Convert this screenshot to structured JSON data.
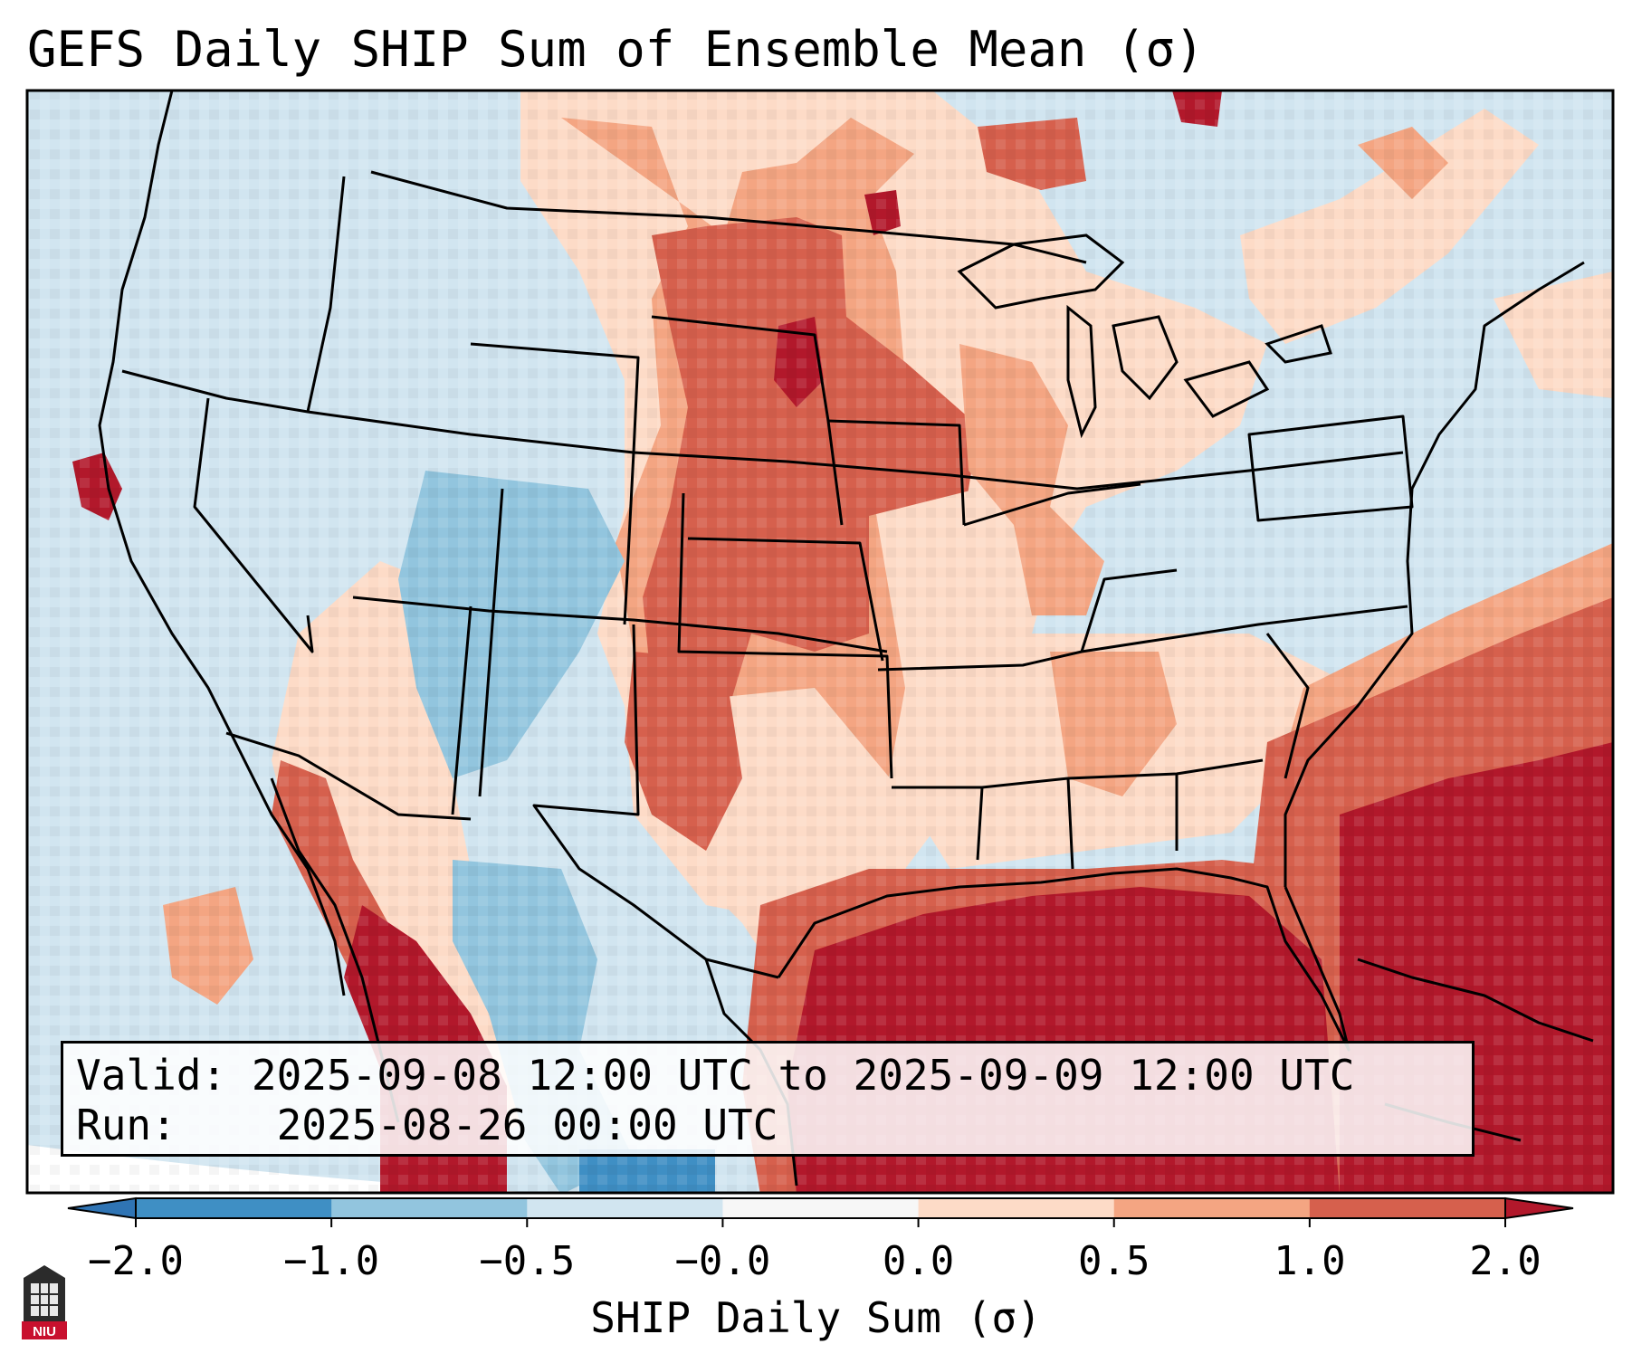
{
  "title": "GEFS Daily SHIP Sum of Ensemble Mean (σ)",
  "info": {
    "valid_label": "Valid:",
    "valid_value": "2025-09-08 12:00 UTC to 2025-09-09 12:00 UTC",
    "run_label": "Run:",
    "run_value": "2025-08-26 00:00 UTC"
  },
  "colorbar": {
    "label": "SHIP Daily Sum (σ)",
    "ticks": [
      "−2.0",
      "−1.0",
      "−0.5",
      "−0.0",
      "0.0",
      "0.5",
      "1.0",
      "2.0"
    ],
    "bins": [
      {
        "range": "< -2.0",
        "color": "#2f74b4"
      },
      {
        "range": "-2.0 to -1.0",
        "color": "#3f8fc4"
      },
      {
        "range": "-1.0 to -0.5",
        "color": "#92c5de"
      },
      {
        "range": "-0.5 to -0.0",
        "color": "#d1e5f0"
      },
      {
        "range": "-0.0 to 0.0",
        "color": "#f7f7f7"
      },
      {
        "range": "0.0 to 0.5",
        "color": "#fddbc7"
      },
      {
        "range": "0.5 to 1.0",
        "color": "#f4a582"
      },
      {
        "range": "1.0 to 2.0",
        "color": "#d6604d"
      },
      {
        "range": "> 2.0",
        "color": "#b2182b"
      }
    ]
  },
  "logo": {
    "name": "NIU",
    "text": "NIU",
    "color": "#c8102e"
  },
  "map_regions": [
    {
      "region": "Pacific Northwest / Great Basin / Rockies",
      "category": "-0.5 to -0.0"
    },
    {
      "region": "Northern Plains (Dakotas, Nebraska, Kansas)",
      "category": "1.0 to 2.0"
    },
    {
      "region": "Gulf of Mexico and Florida",
      "category": "> 2.0"
    },
    {
      "region": "Western Atlantic offshore",
      "category": "> 2.0"
    },
    {
      "region": "Northeast US",
      "category": "-0.5 to -0.0"
    },
    {
      "region": "Colorado / Utah / Northern Mexico",
      "category": "-1.0 to -0.5"
    }
  ]
}
